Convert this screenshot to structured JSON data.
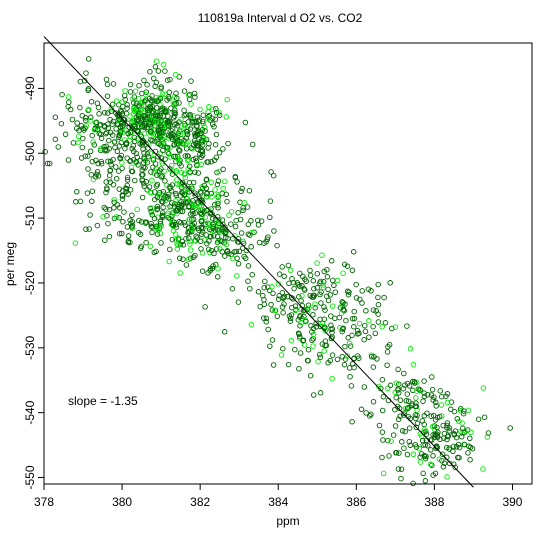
{
  "chart_data": {
    "type": "scatter",
    "title": "110819a   Interval d O2 vs. CO2",
    "xlabel": "ppm",
    "ylabel": "per meg",
    "xlim": [
      378,
      390.5
    ],
    "ylim": [
      -551,
      -483
    ],
    "xticks": [
      378,
      380,
      382,
      384,
      386,
      388,
      390
    ],
    "yticks": [
      -490,
      -500,
      -510,
      -520,
      -530,
      -540,
      -550
    ],
    "annotation": "slope =  -1.35",
    "fit_line": {
      "x": [
        378,
        389
      ],
      "y": [
        -482,
        -551.5
      ]
    },
    "colors": {
      "dark": "#006400",
      "bright": "#00ee00"
    },
    "clusters": [
      {
        "cx": 380.7,
        "cy": -494.5,
        "sx": 0.45,
        "sy": 3.0,
        "n": 260,
        "bright": 0.35
      },
      {
        "cx": 381.6,
        "cy": -497.5,
        "sx": 0.55,
        "sy": 3.2,
        "n": 230,
        "bright": 0.25
      },
      {
        "cx": 379.5,
        "cy": -497.0,
        "sx": 0.55,
        "sy": 4.0,
        "n": 150,
        "bright": 0.1
      },
      {
        "cx": 381.6,
        "cy": -509.0,
        "sx": 0.65,
        "sy": 3.6,
        "n": 300,
        "bright": 0.35
      },
      {
        "cx": 380.2,
        "cy": -506.0,
        "sx": 0.6,
        "sy": 4.5,
        "n": 110,
        "bright": 0.08
      },
      {
        "cx": 382.8,
        "cy": -513.0,
        "sx": 0.6,
        "sy": 4.0,
        "n": 110,
        "bright": 0.15
      },
      {
        "cx": 384.7,
        "cy": -522.0,
        "sx": 0.7,
        "sy": 3.0,
        "n": 130,
        "bright": 0.15
      },
      {
        "cx": 385.4,
        "cy": -528.0,
        "sx": 0.8,
        "sy": 3.2,
        "n": 140,
        "bright": 0.15
      },
      {
        "cx": 387.3,
        "cy": -538.0,
        "sx": 0.55,
        "sy": 3.0,
        "n": 80,
        "bright": 0.15
      },
      {
        "cx": 388.0,
        "cy": -544.0,
        "sx": 0.7,
        "sy": 2.8,
        "n": 160,
        "bright": 0.25
      }
    ]
  }
}
